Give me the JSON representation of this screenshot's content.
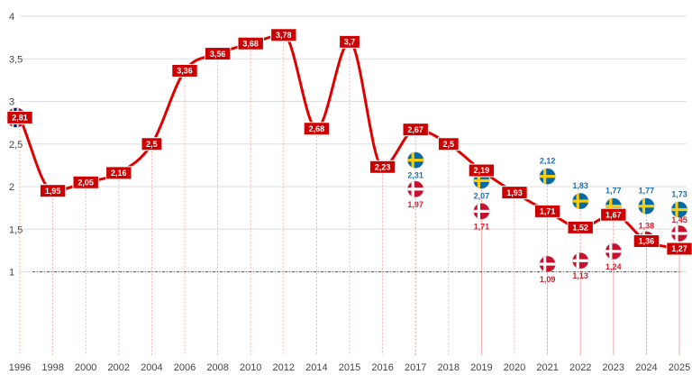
{
  "chart_data": {
    "type": "line",
    "title": "",
    "xlabel": "",
    "ylabel": "",
    "ylim": [
      0,
      4
    ],
    "yticks": [
      "4",
      "3,5",
      "3",
      "2,5",
      "2",
      "1,5",
      "1"
    ],
    "reference_line": 1,
    "grid": "horizontal",
    "colors": {
      "main": "#e00000",
      "sweden_label": "#1f6fb4",
      "denmark_label": "#d51f2a",
      "reference": "#4a5a8a"
    },
    "series": [
      {
        "flag": "norway-flag",
        "x": [
          "1996",
          "1998",
          "2000",
          "2002",
          "2004",
          "2006",
          "2008",
          "2010",
          "2012",
          "2014",
          "2015",
          "2016",
          "2017",
          "2018",
          "2019",
          "2020",
          "2021",
          "2022",
          "2023",
          "2024",
          "2025"
        ],
        "values": [
          2.81,
          1.95,
          2.05,
          2.16,
          2.5,
          3.36,
          3.56,
          3.68,
          3.78,
          2.68,
          3.7,
          2.23,
          2.67,
          2.5,
          2.19,
          1.93,
          1.71,
          1.52,
          1.67,
          1.36,
          1.27
        ],
        "labels": [
          "2,81",
          "1,95",
          "2,05",
          "2,16",
          "2,5",
          "3,36",
          "3,56",
          "3,68",
          "3,78",
          "2,68",
          "3,7",
          "2,23",
          "2,67",
          "2,5",
          "2,19",
          "1,93",
          "1,71",
          "1,52",
          "1,67",
          "1,36",
          "1,27"
        ]
      },
      {
        "flag": "sweden-flag",
        "x": [
          "2017",
          "2019",
          "2021",
          "2022",
          "2023",
          "2024",
          "2025"
        ],
        "values": [
          2.31,
          2.07,
          2.12,
          1.83,
          1.77,
          1.77,
          1.73
        ],
        "labels": [
          "2,31",
          "2,07",
          "2,12",
          "1,83",
          "1,77",
          "1,77",
          "1,73"
        ]
      },
      {
        "flag": "denmark-flag",
        "x": [
          "2017",
          "2019",
          "2021",
          "2022",
          "2023",
          "2024",
          "2025"
        ],
        "values": [
          1.97,
          1.71,
          1.09,
          1.13,
          1.24,
          1.38,
          1.45
        ],
        "labels": [
          "1,97",
          "1,71",
          "1,09",
          "1,13",
          "1,24",
          "1,38",
          "1,45"
        ]
      }
    ]
  }
}
